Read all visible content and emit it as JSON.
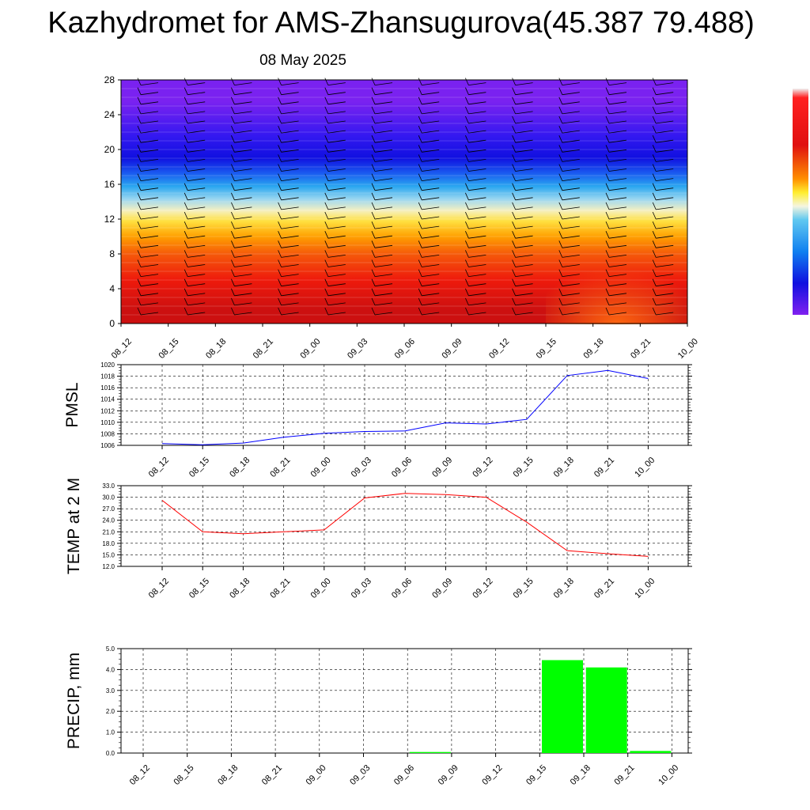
{
  "title": "Kazhydromet for AMS-Zhansugurova(45.387 79.488)",
  "date": "08 May 2025",
  "time_labels": [
    "08_12",
    "08_15",
    "08_18",
    "08_21",
    "09_00",
    "09_03",
    "09_06",
    "09_09",
    "09_12",
    "09_15",
    "09_18",
    "09_21",
    "10_00"
  ],
  "colors": {
    "pmsl_line": "#0000ff",
    "temp_line": "#ff0000",
    "precip_bar": "#00ff00",
    "grid": "#000000"
  },
  "chart_data": [
    {
      "type": "heatmap",
      "title": "",
      "ylabel": "",
      "y_ticks": [
        0,
        4,
        8,
        12,
        16,
        20,
        24,
        28
      ],
      "ylim": [
        0,
        28
      ],
      "x": [
        "08_12",
        "08_15",
        "08_18",
        "08_21",
        "09_00",
        "09_03",
        "09_06",
        "09_09",
        "09_12",
        "09_15",
        "09_18",
        "09_21",
        "10_00"
      ],
      "color_bands": [
        {
          "from": 0,
          "to": 3,
          "color": "#cc1010"
        },
        {
          "from": 3,
          "to": 7,
          "color": "#ee1a0c"
        },
        {
          "from": 7,
          "to": 9,
          "color": "#f55a0a"
        },
        {
          "from": 9,
          "to": 11,
          "color": "#ffa000"
        },
        {
          "from": 11,
          "to": 12.5,
          "color": "#ffe040"
        },
        {
          "from": 12.5,
          "to": 13.5,
          "color": "#f5f0c0"
        },
        {
          "from": 13.5,
          "to": 15,
          "color": "#9ed8f0"
        },
        {
          "from": 15,
          "to": 16.5,
          "color": "#2aa6f0"
        },
        {
          "from": 16.5,
          "to": 18,
          "color": "#1a5cf0"
        },
        {
          "from": 18,
          "to": 20,
          "color": "#1010e0"
        },
        {
          "from": 20,
          "to": 23,
          "color": "#3318f0"
        },
        {
          "from": 23,
          "to": 28,
          "color": "#7a22f0"
        }
      ],
      "wind_barbs": true
    },
    {
      "type": "line",
      "ylabel": "PMSL",
      "ylim": [
        1006,
        1020
      ],
      "y_ticks": [
        1006,
        1008,
        1010,
        1012,
        1014,
        1016,
        1018,
        1020
      ],
      "y_tick_labels": [
        "1006",
        "1008",
        "1010",
        "1012",
        "1014",
        "1016",
        "1018",
        "1020"
      ],
      "x": [
        "08_12",
        "08_15",
        "08_18",
        "08_21",
        "09_00",
        "09_03",
        "09_06",
        "09_09",
        "09_12",
        "09_15",
        "09_18",
        "09_21",
        "10_00"
      ],
      "series": [
        {
          "values": [
            1006.3,
            1006.1,
            1006.4,
            1007.4,
            1008.1,
            1008.4,
            1008.5,
            1009.9,
            1009.7,
            1010.5,
            1018.1,
            1019.0,
            1017.6
          ]
        }
      ]
    },
    {
      "type": "line",
      "ylabel": "TEMP at 2 M",
      "ylim": [
        12,
        33
      ],
      "y_ticks": [
        12,
        15,
        18,
        21,
        24,
        27,
        30,
        33
      ],
      "y_tick_labels": [
        "12.0",
        "15.0",
        "18.0",
        "21.0",
        "24.0",
        "27.0",
        "30.0",
        "33.0"
      ],
      "x": [
        "08_12",
        "08_15",
        "08_18",
        "08_21",
        "09_00",
        "09_03",
        "09_06",
        "09_09",
        "09_12",
        "09_15",
        "09_18",
        "09_21",
        "10_00"
      ],
      "series": [
        {
          "values": [
            29.2,
            21.0,
            20.5,
            21.0,
            21.5,
            29.8,
            31.0,
            30.7,
            30.0,
            23.5,
            16.1,
            15.3,
            14.6
          ]
        }
      ]
    },
    {
      "type": "bar",
      "ylabel": "PRECIP, mm",
      "ylim": [
        0,
        5
      ],
      "y_ticks": [
        0,
        1,
        2,
        3,
        4,
        5
      ],
      "y_tick_labels": [
        "0.0",
        "1.0",
        "2.0",
        "3.0",
        "4.0",
        "5.0"
      ],
      "categories": [
        "08_12",
        "08_15",
        "08_18",
        "08_21",
        "09_00",
        "09_03",
        "09_06",
        "09_09",
        "09_12",
        "09_15",
        "09_18",
        "09_21",
        "10_00"
      ],
      "values": [
        0,
        0,
        0,
        0,
        0,
        0,
        0,
        0.05,
        0,
        0,
        4.45,
        4.1,
        0.1
      ]
    }
  ]
}
